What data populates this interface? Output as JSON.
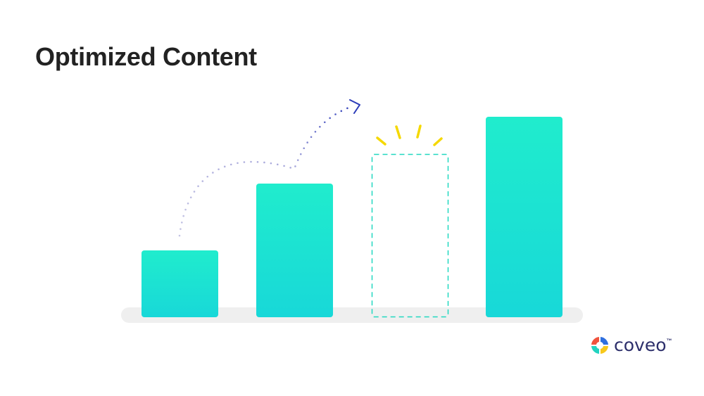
{
  "title": "Optimized Content",
  "logo": {
    "text": "coveo",
    "tm": "™"
  },
  "colors": {
    "bar_top": "#20eccd",
    "bar_bottom": "#18d8d8",
    "dashed_outline": "#20d8c0",
    "path_dots": "#a9a9dc",
    "arrow": "#2b3bb8",
    "sparkle": "#f5d800",
    "base": "#ececec",
    "title": "#222222"
  },
  "icons": [
    "dotted-arrow-icon",
    "sparkle-icon",
    "coveo-logo-icon"
  ]
}
